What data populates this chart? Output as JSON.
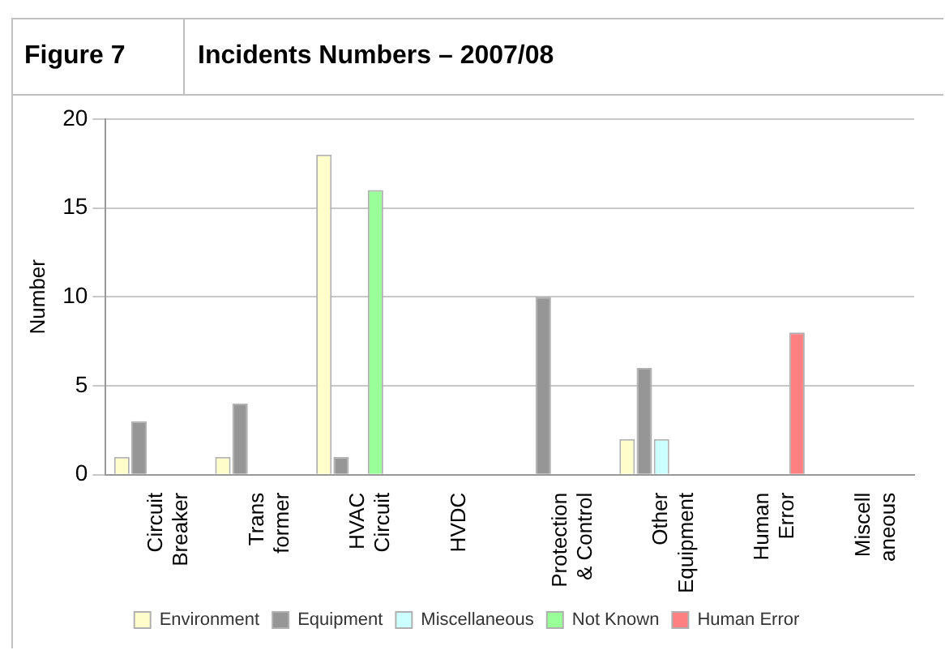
{
  "chart_data": {
    "type": "bar",
    "title": "Figure 7",
    "subtitle": "Incidents Numbers – 2007/08",
    "ylabel": "Number",
    "categories": [
      "Circuit\nBreaker",
      "Trans\nformer",
      "HVAC\nCircuit",
      "HVDC",
      "Protection\n& Control",
      "Other\nEquipment",
      "Human\nError",
      "Miscell\naneous"
    ],
    "series": [
      {
        "name": "Environment",
        "color": "#ffffcc",
        "values": [
          1,
          1,
          18,
          null,
          null,
          2,
          null,
          null
        ]
      },
      {
        "name": "Equipment",
        "color": "#969696",
        "values": [
          3,
          4,
          1,
          null,
          10,
          6,
          null,
          null
        ]
      },
      {
        "name": "Miscellaneous",
        "color": "#ccffff",
        "values": [
          null,
          null,
          null,
          null,
          null,
          2,
          null,
          null
        ]
      },
      {
        "name": "Not Known",
        "color": "#99ff99",
        "values": [
          null,
          null,
          16,
          null,
          null,
          null,
          null,
          null
        ]
      },
      {
        "name": "Human Error",
        "color": "#ff8080",
        "values": [
          null,
          null,
          null,
          null,
          null,
          null,
          8,
          null
        ]
      }
    ],
    "ylim": [
      0,
      20
    ],
    "yticks": [
      0,
      5,
      10,
      15,
      20
    ],
    "grid": "y",
    "legend": "bottom"
  }
}
